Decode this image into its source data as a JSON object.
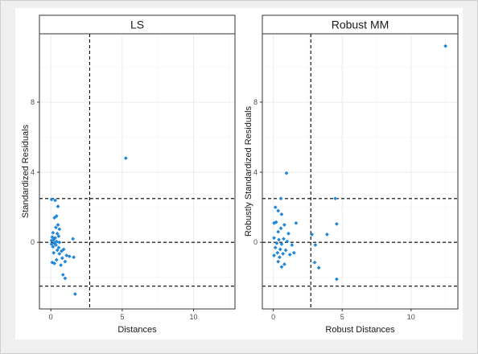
{
  "chart_data": [
    {
      "type": "scatter",
      "title": "LS",
      "xlabel": "Distances",
      "ylabel": "Standardized Residuals",
      "xlim": [
        -0.8,
        12.9
      ],
      "ylim": [
        -3.8,
        11.9
      ],
      "xticks": [
        0,
        5,
        10
      ],
      "yticks": [
        0,
        4,
        8
      ],
      "grid": true,
      "point_color": "#1f86d8",
      "vline": 2.72,
      "hlines": [
        -2.5,
        0,
        2.5
      ],
      "points": [
        [
          0.05,
          2.45
        ],
        [
          0.3,
          2.4
        ],
        [
          0.5,
          2.05
        ],
        [
          0.4,
          1.5
        ],
        [
          0.25,
          1.4
        ],
        [
          0.5,
          1.0
        ],
        [
          0.35,
          0.85
        ],
        [
          0.6,
          0.75
        ],
        [
          0.15,
          0.55
        ],
        [
          0.45,
          0.5
        ],
        [
          0.1,
          0.3
        ],
        [
          0.3,
          0.25
        ],
        [
          0.55,
          0.35
        ],
        [
          0.2,
          0.15
        ],
        [
          0.05,
          0.1
        ],
        [
          0.4,
          0.05
        ],
        [
          0.25,
          -0.05
        ],
        [
          0.6,
          0.0
        ],
        [
          0.05,
          -0.1
        ],
        [
          0.35,
          -0.15
        ],
        [
          0.15,
          -0.25
        ],
        [
          0.55,
          -0.3
        ],
        [
          0.45,
          -0.45
        ],
        [
          0.75,
          -0.5
        ],
        [
          0.9,
          -0.4
        ],
        [
          0.2,
          -0.6
        ],
        [
          0.6,
          -0.65
        ],
        [
          1.1,
          -0.75
        ],
        [
          1.3,
          -0.8
        ],
        [
          1.6,
          -0.85
        ],
        [
          0.8,
          -0.9
        ],
        [
          0.4,
          -1.0
        ],
        [
          0.1,
          -1.15
        ],
        [
          0.25,
          -1.2
        ],
        [
          1.0,
          -1.1
        ],
        [
          0.7,
          -1.3
        ],
        [
          0.85,
          -1.85
        ],
        [
          1.0,
          -2.05
        ],
        [
          1.55,
          0.2
        ],
        [
          1.7,
          -2.95
        ],
        [
          5.25,
          4.8
        ]
      ]
    },
    {
      "type": "scatter",
      "title": "Robust MM",
      "xlabel": "Robust Distances",
      "ylabel": "Robustly Standardized Residuals",
      "xlim": [
        -0.8,
        13.4
      ],
      "ylim": [
        -3.8,
        11.9
      ],
      "xticks": [
        0,
        5,
        10
      ],
      "yticks": [
        0,
        4,
        8
      ],
      "grid": true,
      "point_color": "#1f86d8",
      "vline": 2.72,
      "hlines": [
        -2.5,
        0,
        2.5
      ],
      "points": [
        [
          0.95,
          3.95
        ],
        [
          0.55,
          2.5
        ],
        [
          0.15,
          2.0
        ],
        [
          0.35,
          1.8
        ],
        [
          0.6,
          1.6
        ],
        [
          0.05,
          1.1
        ],
        [
          0.2,
          1.15
        ],
        [
          0.8,
          1.0
        ],
        [
          1.65,
          1.1
        ],
        [
          0.55,
          0.8
        ],
        [
          0.35,
          0.6
        ],
        [
          1.1,
          0.5
        ],
        [
          0.05,
          0.25
        ],
        [
          0.4,
          0.15
        ],
        [
          0.75,
          0.2
        ],
        [
          1.0,
          0.05
        ],
        [
          0.25,
          -0.05
        ],
        [
          0.6,
          -0.1
        ],
        [
          1.35,
          -0.15
        ],
        [
          0.15,
          -0.3
        ],
        [
          0.5,
          -0.4
        ],
        [
          0.9,
          -0.45
        ],
        [
          0.3,
          -0.6
        ],
        [
          0.7,
          -0.65
        ],
        [
          1.2,
          -0.7
        ],
        [
          0.05,
          -0.75
        ],
        [
          0.45,
          -0.85
        ],
        [
          1.5,
          -0.6
        ],
        [
          0.35,
          -1.1
        ],
        [
          0.8,
          -1.25
        ],
        [
          0.6,
          -1.4
        ],
        [
          2.8,
          0.45
        ],
        [
          3.05,
          -0.15
        ],
        [
          3.9,
          0.45
        ],
        [
          3.0,
          -1.15
        ],
        [
          3.3,
          -1.45
        ],
        [
          4.5,
          2.5
        ],
        [
          4.6,
          1.05
        ],
        [
          4.6,
          -2.1
        ],
        [
          12.5,
          11.2
        ]
      ]
    }
  ]
}
